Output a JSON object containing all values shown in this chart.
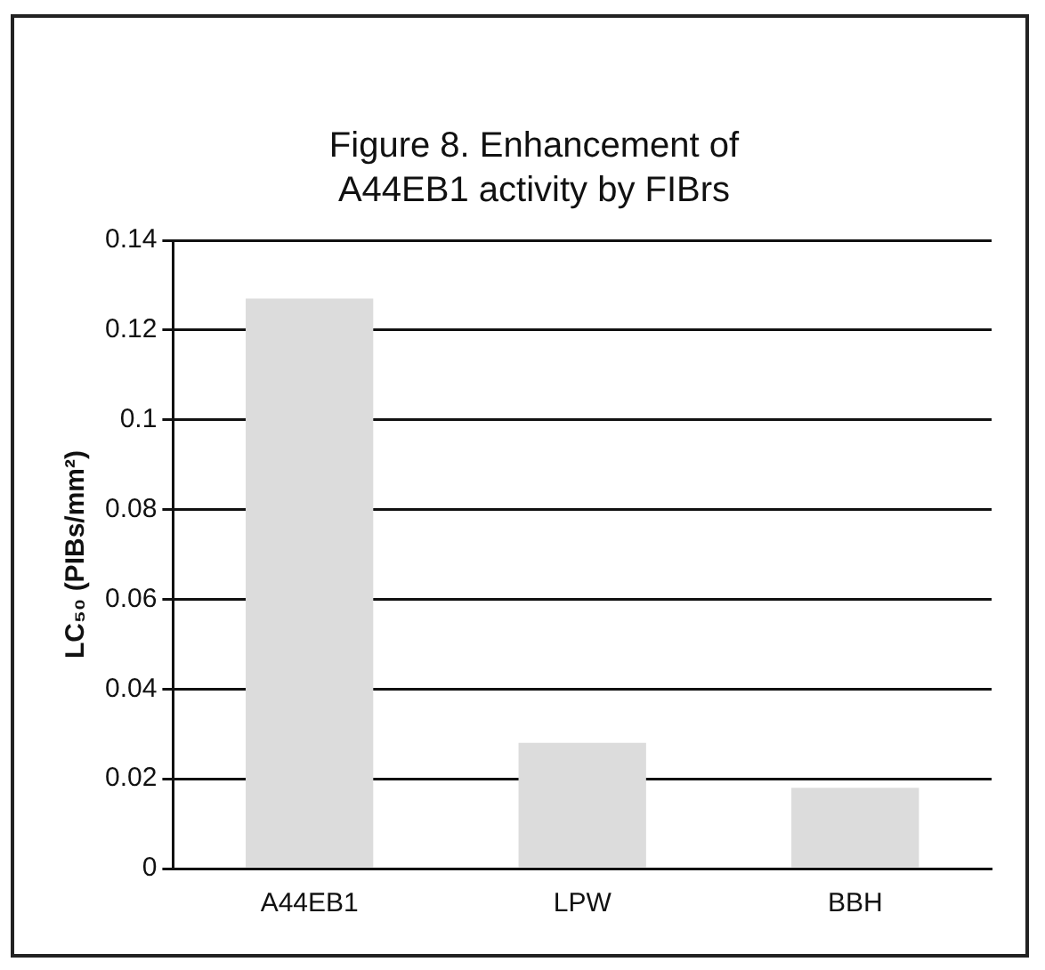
{
  "chart_data": {
    "type": "bar",
    "title": "Figure 8. Enhancement of A44EB1 activity by FIBrs",
    "ylabel": "LC₅₀ (PIBs/mm²)",
    "categories": [
      "A44EB1",
      "LPW",
      "BBH"
    ],
    "values": [
      0.127,
      0.028,
      0.018
    ],
    "color": "#dcdcdc",
    "ylim": [
      0,
      0.14
    ],
    "yticks": [
      0,
      0.02,
      0.04,
      0.06,
      0.08,
      0.1,
      0.12,
      0.14
    ],
    "grid": "y",
    "legend": false
  }
}
